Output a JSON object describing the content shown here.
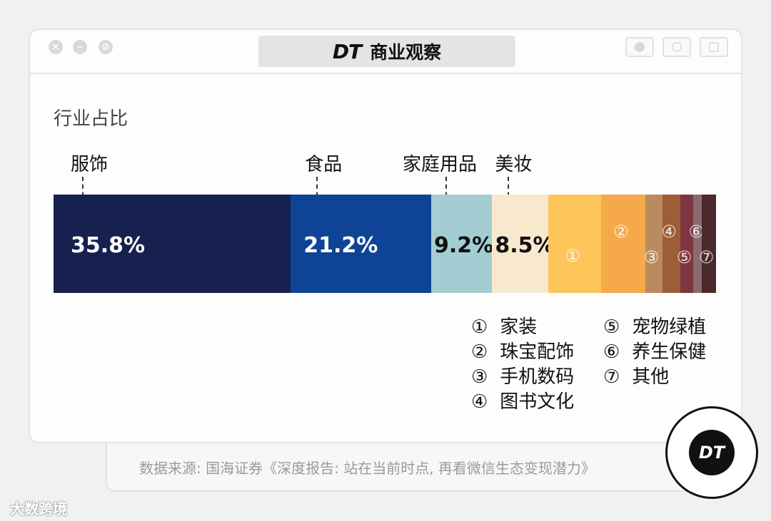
{
  "window": {
    "logo": "DT",
    "title": "商业观察"
  },
  "chart_data": {
    "type": "bar",
    "orientation": "horizontal-stacked-100",
    "title": "行业占比",
    "segments": [
      {
        "label": "服饰",
        "value": 35.8,
        "value_label": "35.8%",
        "color": "#16214f"
      },
      {
        "label": "食品",
        "value": 21.2,
        "value_label": "21.2%",
        "color": "#0e4396"
      },
      {
        "label": "家庭用品",
        "value": 9.2,
        "value_label": "9.2%",
        "color": "#a3cdd2"
      },
      {
        "label": "美妆",
        "value": 8.5,
        "value_label": "8.5%",
        "color": "#f8e9ce"
      },
      {
        "label": "家装",
        "marker": "①",
        "value": 8.0,
        "color": "#fdc55a"
      },
      {
        "label": "珠宝配饰",
        "marker": "②",
        "value": 6.6,
        "color": "#f6a94a"
      },
      {
        "label": "手机数码",
        "marker": "③",
        "value": 2.6,
        "color": "#b98b5f"
      },
      {
        "label": "图书文化",
        "marker": "④",
        "value": 2.7,
        "color": "#9d5d36"
      },
      {
        "label": "宠物绿植",
        "marker": "⑤",
        "value": 1.9,
        "color": "#7d3640"
      },
      {
        "label": "养生保健",
        "marker": "⑥",
        "value": 1.3,
        "color": "#8a6a70"
      },
      {
        "label": "其他",
        "marker": "⑦",
        "value": 2.2,
        "color": "#4a2a2a"
      }
    ]
  },
  "legend": [
    {
      "marker": "①",
      "label": "家装"
    },
    {
      "marker": "②",
      "label": "珠宝配饰"
    },
    {
      "marker": "③",
      "label": "手机数码"
    },
    {
      "marker": "④",
      "label": "图书文化"
    },
    {
      "marker": "⑤",
      "label": "宠物绿植"
    },
    {
      "marker": "⑥",
      "label": "养生保健"
    },
    {
      "marker": "⑦",
      "label": "其他"
    }
  ],
  "source": "数据来源: 国海证券《深度报告: 站在当前时点, 再看微信生态变现潜力》",
  "badge": "DT",
  "watermark": "大数跨境"
}
